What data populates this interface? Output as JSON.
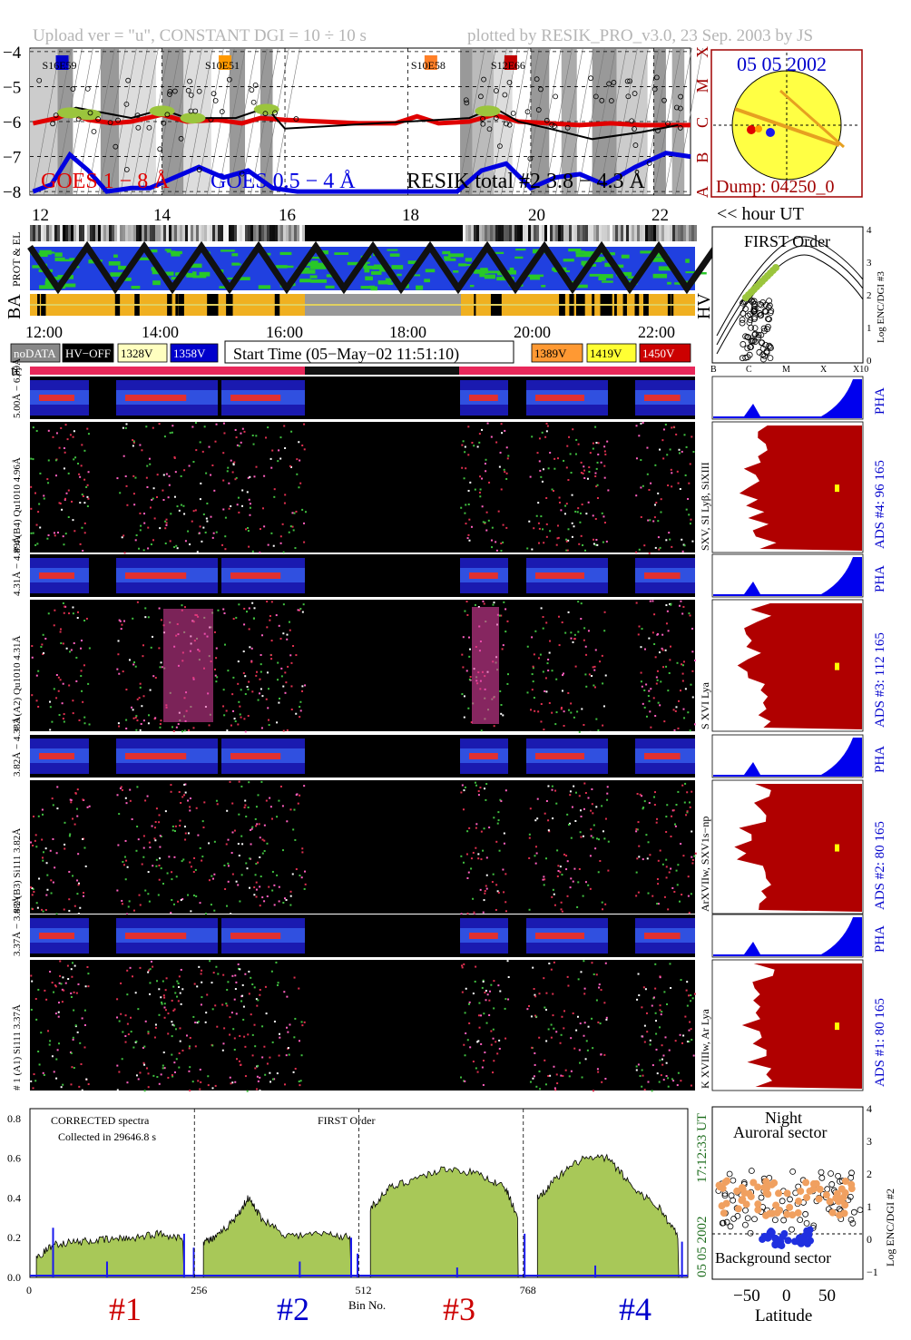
{
  "header": {
    "left": "Upload ver = \"u\", CONSTANT  DGI =  10 ÷  10 s",
    "right": "plotted by RESIK_PRO_v3.0, 23 Sep. 2003 by JS"
  },
  "top_panel": {
    "ytick_labels": [
      "−4",
      "−5",
      "−6",
      "−7",
      "−8"
    ],
    "class_labels": [
      "X",
      "M",
      "C",
      "B",
      "A"
    ],
    "flare_ids": [
      "S16E59",
      "S10E51",
      "S10E58",
      "S12E66"
    ],
    "legend": [
      "GOES 1 − 8 Å",
      "GOES 0.5 − 4 Å",
      "RESIK total #2  3.8 − 4.3 Å"
    ],
    "legend_colors": [
      "#e00000",
      "#0000e0",
      "#000000"
    ],
    "flare_colors": [
      "#0000cc",
      "#ff9900",
      "#ff7f27",
      "#c00000"
    ]
  },
  "sun_panel": {
    "date": "05 05 2002",
    "dump": "Dump: 04250_0",
    "disk_color": "#ffff44",
    "frame_color": "#a00000"
  },
  "hour_axis": {
    "ticks": [
      "12",
      "14",
      "16",
      "18",
      "20",
      "22"
    ],
    "label": "<< hour UT"
  },
  "status_rows": {
    "labels": [
      "PROT & EL",
      "BA",
      "HV"
    ]
  },
  "time_axis": {
    "ticks": [
      "12:00",
      "14:00",
      "16:00",
      "18:00",
      "20:00",
      "22:00"
    ]
  },
  "legend_row": {
    "items": [
      {
        "label": "noDATA",
        "bg": "#888888",
        "fg": "#ffffff"
      },
      {
        "label": "HV−OFF",
        "bg": "#000000",
        "fg": "#ffffff"
      },
      {
        "label": "1328V",
        "bg": "#ffffc0",
        "fg": "#000000"
      },
      {
        "label": "1358V",
        "bg": "#0000cc",
        "fg": "#ffffff"
      },
      {
        "label": "1389V",
        "bg": "#ff9933",
        "fg": "#000000"
      },
      {
        "label": "1419V",
        "bg": "#ffff33",
        "fg": "#000000"
      },
      {
        "label": "1450V",
        "bg": "#cc0000",
        "fg": "#ffffff"
      }
    ],
    "start_time": "Start Time (05−May−02 11:51:10)",
    "tc": "tc"
  },
  "hv_panel": {
    "title": "FIRST Order",
    "ylabel": "Log ENC/DGI #3",
    "yticks": [
      "4",
      "3",
      "2",
      "1",
      "0"
    ],
    "xticks": [
      "B",
      "C",
      "M",
      "X",
      "X10"
    ]
  },
  "channels": [
    {
      "pha_label": "5.00Å − 6.09Å",
      "spec_label": "# 4 (B4) Qu1010 4.96Å",
      "lines": "SXV, SI Lyβ, SiXIII",
      "ads": "ADS #4:   96 165",
      "pha": "PHA"
    },
    {
      "pha_label": "4.31Å − 4.89Å",
      "spec_label": "# 3 (A2) Qu1010  4.31Å",
      "lines": "S XVI Lya",
      "ads": "ADS #3:   112 165",
      "pha": "PHA"
    },
    {
      "pha_label": "3.82Å − 4.33Å",
      "spec_label": "# 2 (B3) Si111  3.82Å",
      "lines": "ArXVIIw, SXV1s−np",
      "ads": "ADS #2:   80 165",
      "pha": "PHA"
    },
    {
      "pha_label": "3.37Å − 3.88Å",
      "spec_label": "# 1 (A1) Si111  3.37Å",
      "lines": "K XVIIIw, Ar Lya",
      "ads": "ADS #1:   80 165",
      "pha": "PHA"
    }
  ],
  "bottom_spectrum": {
    "text1": "CORRECTED spectra",
    "text2": "Collected in 29646.8 s",
    "order": "FIRST Order",
    "yticks": [
      "0.8",
      "0.6",
      "0.4",
      "0.2",
      "0.0"
    ],
    "xticks": [
      "0",
      "256",
      "512",
      "768"
    ],
    "xlabel": "Bin No.",
    "channels": [
      "#1",
      "#2",
      "#3",
      "#4"
    ],
    "channel_colors": [
      "#cc0000",
      "#0000cc",
      "#cc0000",
      "#0000cc"
    ],
    "side_time": "17:12:33 UT",
    "side_date": "05 05 2002",
    "fill_color": "#a8c858"
  },
  "orbit_panel": {
    "title1": "Night",
    "title2": "Auroral sector",
    "bottom": "Background sector",
    "ylabel": "Log ENC/DGI #2",
    "yticks": [
      "4",
      "3",
      "2",
      "1",
      "0",
      "−1"
    ],
    "xticks": [
      "−50",
      "0",
      "50"
    ],
    "xlabel": "Latitude"
  },
  "chart_data": [
    {
      "type": "line",
      "title": "",
      "xlabel": "hour UT",
      "ylabel": "",
      "xlim": [
        11.85,
        22.6
      ],
      "ylim": [
        -8.1,
        -3.9
      ],
      "series": [
        {
          "name": "GOES 1 − 8 Å",
          "x": [
            11.9,
            12.3,
            12.5,
            12.8,
            13.2,
            13.5,
            14.0,
            14.4,
            14.9,
            15.3,
            15.6,
            16.0,
            16.6,
            17.2,
            17.8,
            18.15,
            18.5,
            19.0,
            19.4,
            19.8,
            20.3,
            20.8,
            21.3,
            21.8,
            22.3,
            22.6
          ],
          "values": [
            -6.05,
            -5.9,
            -5.75,
            -5.95,
            -6.05,
            -6.0,
            -5.8,
            -6.0,
            -5.95,
            -6.05,
            -5.9,
            -5.95,
            -6.0,
            -6.05,
            -6.05,
            -5.85,
            -6.05,
            -6.0,
            -5.8,
            -6.0,
            -6.05,
            -6.1,
            -6.05,
            -6.1,
            -6.1,
            -6.1
          ]
        },
        {
          "name": "GOES 0.5 − 4 Å",
          "x": [
            11.9,
            12.2,
            12.5,
            12.8,
            13.1,
            13.5,
            13.8,
            14.2,
            14.6,
            15.0,
            15.4,
            15.8,
            16.2,
            16.6,
            17.0,
            17.4,
            17.8,
            18.3,
            18.8,
            19.2,
            19.6,
            20.0,
            20.4,
            20.8,
            21.2,
            21.7,
            22.2,
            22.6
          ],
          "values": [
            -8.0,
            -7.8,
            -6.95,
            -7.4,
            -8.0,
            -7.9,
            -7.9,
            -7.6,
            -7.3,
            -7.6,
            -7.4,
            -7.9,
            -8.0,
            -8.0,
            -8.0,
            -8.0,
            -8.0,
            -8.0,
            -8.0,
            -7.4,
            -7.2,
            -7.9,
            -7.6,
            -7.5,
            -7.8,
            -7.3,
            -6.9,
            -7.0
          ]
        },
        {
          "name": "RESIK total #2  3.8 − 4.3 Å",
          "x": [
            12.3,
            12.6,
            13.5,
            14.0,
            14.4,
            15.2,
            15.7,
            16.0,
            19.0,
            19.4,
            19.8,
            20.3,
            21.0,
            21.8,
            22.4
          ],
          "values": [
            -5.8,
            -5.6,
            -5.9,
            -5.65,
            -5.9,
            -5.9,
            -5.6,
            -6.2,
            -5.9,
            -5.6,
            -6.0,
            -6.2,
            -6.5,
            -6.3,
            -6.1
          ]
        }
      ]
    },
    {
      "type": "area",
      "title": "",
      "xlabel": "Bin No.",
      "ylabel": "",
      "xlim": [
        0,
        1024
      ],
      "ylim": [
        0,
        0.85
      ],
      "series": [
        {
          "name": "#1",
          "x": [
            10,
            40,
            80,
            120,
            160,
            200,
            240
          ],
          "values": [
            0.1,
            0.17,
            0.18,
            0.19,
            0.2,
            0.22,
            0.2
          ]
        },
        {
          "name": "#2",
          "x": [
            270,
            290,
            320,
            340,
            360,
            400,
            460,
            500
          ],
          "values": [
            0.18,
            0.2,
            0.3,
            0.4,
            0.3,
            0.21,
            0.22,
            0.2
          ]
        },
        {
          "name": "#3",
          "x": [
            530,
            560,
            600,
            650,
            700,
            740,
            760
          ],
          "values": [
            0.35,
            0.45,
            0.5,
            0.55,
            0.52,
            0.45,
            0.3
          ]
        },
        {
          "name": "#4",
          "x": [
            790,
            820,
            860,
            900,
            940,
            980,
            1010
          ],
          "values": [
            0.4,
            0.5,
            0.6,
            0.6,
            0.45,
            0.35,
            0.2
          ]
        }
      ]
    }
  ]
}
